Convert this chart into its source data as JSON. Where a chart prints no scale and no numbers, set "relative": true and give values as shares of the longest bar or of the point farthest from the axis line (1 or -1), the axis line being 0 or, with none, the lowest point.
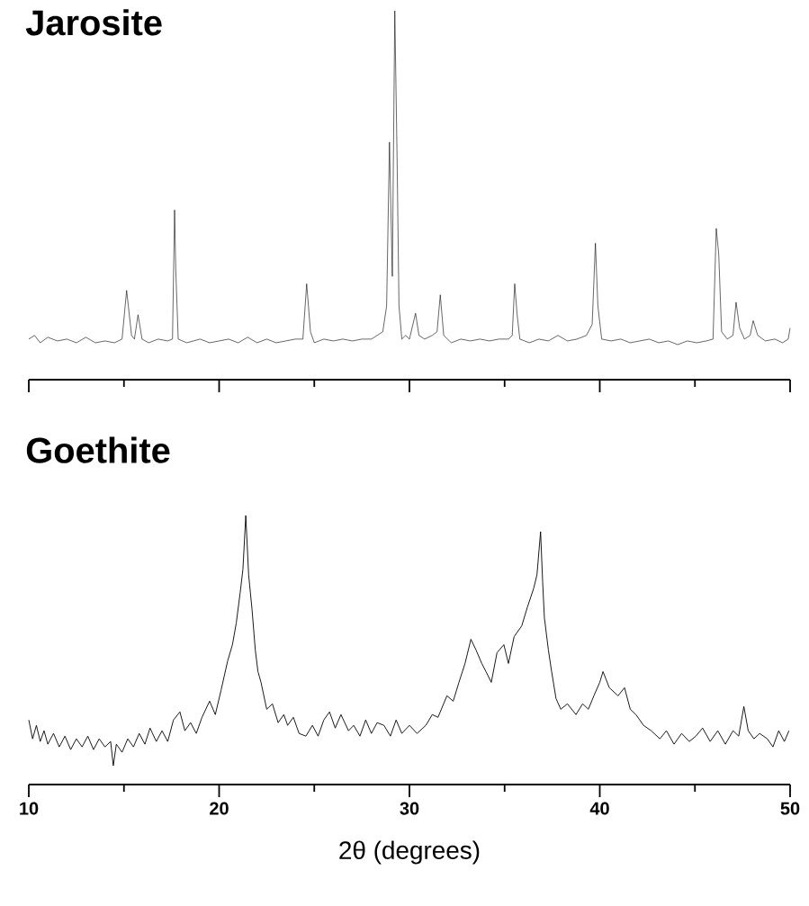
{
  "chart_data": [
    {
      "type": "line",
      "title": "Jarosite",
      "relative": true,
      "xlim": [
        10,
        50
      ],
      "tick_labels": false,
      "xticks": [
        10,
        {
          "value": 15,
          "label": null
        },
        20,
        {
          "value": 25,
          "label": null
        },
        30,
        {
          "value": 35,
          "label": null
        },
        40,
        {
          "value": 45,
          "label": null
        },
        50
      ],
      "series": [
        {
          "color": "#000000",
          "x": [
            10.0,
            10.3,
            10.6,
            11.0,
            11.5,
            12.0,
            12.5,
            13.0,
            13.5,
            14.0,
            14.5,
            14.9,
            15.14,
            15.4,
            15.55,
            15.74,
            15.95,
            16.3,
            16.8,
            17.3,
            17.55,
            17.66,
            17.72,
            17.85,
            18.3,
            19.0,
            19.5,
            20.0,
            20.5,
            21.0,
            21.5,
            22.0,
            22.5,
            23.0,
            23.5,
            24.0,
            24.4,
            24.6,
            24.8,
            25.0,
            25.5,
            26.0,
            26.5,
            27.0,
            27.5,
            28.0,
            28.3,
            28.6,
            28.8,
            28.95,
            29.1,
            29.23,
            29.35,
            29.45,
            29.6,
            29.8,
            30.0,
            30.32,
            30.5,
            30.8,
            31.2,
            31.45,
            31.62,
            31.8,
            32.2,
            32.7,
            33.2,
            33.7,
            34.2,
            34.7,
            35.2,
            35.4,
            35.53,
            35.65,
            35.8,
            36.3,
            36.8,
            37.3,
            37.8,
            38.3,
            38.8,
            39.3,
            39.6,
            39.77,
            39.9,
            40.1,
            40.6,
            41.1,
            41.6,
            42.1,
            42.6,
            43.1,
            43.6,
            44.1,
            44.6,
            45.1,
            45.6,
            45.95,
            46.12,
            46.25,
            46.4,
            46.7,
            47.0,
            47.16,
            47.35,
            47.6,
            47.9,
            48.06,
            48.3,
            48.7,
            49.2,
            49.6,
            49.9,
            50.0
          ],
          "values": [
            0.11,
            0.12,
            0.1,
            0.115,
            0.105,
            0.11,
            0.1,
            0.115,
            0.1,
            0.105,
            0.1,
            0.11,
            0.242,
            0.12,
            0.11,
            0.176,
            0.11,
            0.1,
            0.11,
            0.105,
            0.11,
            0.46,
            0.3,
            0.11,
            0.1,
            0.11,
            0.1,
            0.105,
            0.11,
            0.1,
            0.115,
            0.1,
            0.11,
            0.1,
            0.105,
            0.11,
            0.11,
            0.26,
            0.13,
            0.1,
            0.11,
            0.105,
            0.11,
            0.105,
            0.11,
            0.11,
            0.12,
            0.13,
            0.2,
            0.644,
            0.28,
            1.0,
            0.6,
            0.2,
            0.11,
            0.12,
            0.11,
            0.18,
            0.12,
            0.11,
            0.12,
            0.13,
            0.23,
            0.12,
            0.1,
            0.11,
            0.105,
            0.11,
            0.105,
            0.11,
            0.11,
            0.12,
            0.26,
            0.18,
            0.11,
            0.1,
            0.11,
            0.105,
            0.12,
            0.105,
            0.11,
            0.12,
            0.15,
            0.37,
            0.2,
            0.11,
            0.105,
            0.11,
            0.1,
            0.105,
            0.11,
            0.1,
            0.105,
            0.095,
            0.105,
            0.1,
            0.105,
            0.11,
            0.41,
            0.34,
            0.13,
            0.11,
            0.12,
            0.21,
            0.14,
            0.11,
            0.12,
            0.16,
            0.12,
            0.105,
            0.11,
            0.1,
            0.11,
            0.14
          ]
        }
      ]
    },
    {
      "type": "line",
      "title": "Goethite",
      "xlabel": "2θ (degrees)",
      "relative": true,
      "xlim": [
        10,
        50
      ],
      "tick_labels": "x",
      "xticks": [
        10,
        {
          "value": 15,
          "label": null
        },
        20,
        {
          "value": 25,
          "label": null
        },
        30,
        {
          "value": 35,
          "label": null
        },
        40,
        {
          "value": 45,
          "label": null
        },
        50
      ],
      "series": [
        {
          "color": "#000000",
          "x": [
            10.0,
            10.2,
            10.4,
            10.6,
            10.8,
            11.0,
            11.3,
            11.6,
            11.9,
            12.2,
            12.5,
            12.8,
            13.1,
            13.4,
            13.7,
            14.0,
            14.3,
            14.44,
            14.6,
            14.9,
            15.2,
            15.5,
            15.8,
            16.1,
            16.37,
            16.7,
            17.0,
            17.3,
            17.6,
            17.94,
            18.2,
            18.5,
            18.8,
            19.1,
            19.5,
            19.8,
            20.1,
            20.45,
            20.7,
            20.9,
            21.1,
            21.25,
            21.4,
            21.55,
            21.73,
            21.9,
            22.04,
            22.2,
            22.5,
            22.8,
            23.1,
            23.4,
            23.6,
            23.9,
            24.2,
            24.56,
            24.9,
            25.2,
            25.5,
            25.8,
            26.1,
            26.4,
            26.8,
            27.07,
            27.4,
            27.7,
            28.0,
            28.3,
            28.66,
            29.0,
            29.3,
            29.6,
            30.0,
            30.4,
            30.86,
            31.2,
            31.5,
            31.97,
            32.3,
            32.6,
            32.92,
            33.23,
            33.5,
            33.8,
            34.02,
            34.3,
            34.6,
            34.96,
            35.2,
            35.5,
            35.9,
            36.2,
            36.53,
            36.7,
            36.89,
            37.0,
            37.09,
            37.3,
            37.47,
            37.7,
            37.95,
            38.3,
            38.75,
            39.1,
            39.4,
            39.69,
            40.0,
            40.17,
            40.5,
            40.96,
            41.3,
            41.6,
            41.9,
            42.3,
            42.7,
            43.16,
            43.5,
            43.9,
            44.3,
            44.7,
            45.05,
            45.4,
            45.8,
            46.2,
            46.6,
            47.0,
            47.3,
            47.57,
            47.8,
            48.1,
            48.4,
            48.8,
            49.1,
            49.4,
            49.7,
            49.94
          ],
          "values": [
            0.24,
            0.17,
            0.22,
            0.16,
            0.2,
            0.15,
            0.19,
            0.14,
            0.18,
            0.13,
            0.17,
            0.14,
            0.18,
            0.13,
            0.17,
            0.14,
            0.16,
            0.07,
            0.15,
            0.12,
            0.17,
            0.14,
            0.19,
            0.15,
            0.21,
            0.16,
            0.2,
            0.16,
            0.24,
            0.27,
            0.2,
            0.23,
            0.19,
            0.25,
            0.31,
            0.26,
            0.35,
            0.46,
            0.52,
            0.6,
            0.71,
            0.8,
            1.0,
            0.78,
            0.65,
            0.5,
            0.42,
            0.38,
            0.28,
            0.3,
            0.23,
            0.26,
            0.22,
            0.25,
            0.19,
            0.18,
            0.22,
            0.18,
            0.24,
            0.27,
            0.21,
            0.26,
            0.2,
            0.22,
            0.18,
            0.24,
            0.19,
            0.23,
            0.22,
            0.18,
            0.24,
            0.19,
            0.22,
            0.19,
            0.22,
            0.26,
            0.25,
            0.33,
            0.31,
            0.38,
            0.45,
            0.54,
            0.5,
            0.45,
            0.42,
            0.38,
            0.49,
            0.52,
            0.45,
            0.55,
            0.59,
            0.66,
            0.73,
            0.78,
            0.94,
            0.75,
            0.62,
            0.5,
            0.42,
            0.32,
            0.28,
            0.3,
            0.26,
            0.3,
            0.28,
            0.33,
            0.38,
            0.42,
            0.36,
            0.33,
            0.36,
            0.28,
            0.26,
            0.22,
            0.2,
            0.17,
            0.2,
            0.15,
            0.19,
            0.16,
            0.18,
            0.21,
            0.16,
            0.2,
            0.15,
            0.2,
            0.18,
            0.29,
            0.2,
            0.17,
            0.19,
            0.17,
            0.14,
            0.2,
            0.16,
            0.2
          ]
        }
      ]
    }
  ]
}
